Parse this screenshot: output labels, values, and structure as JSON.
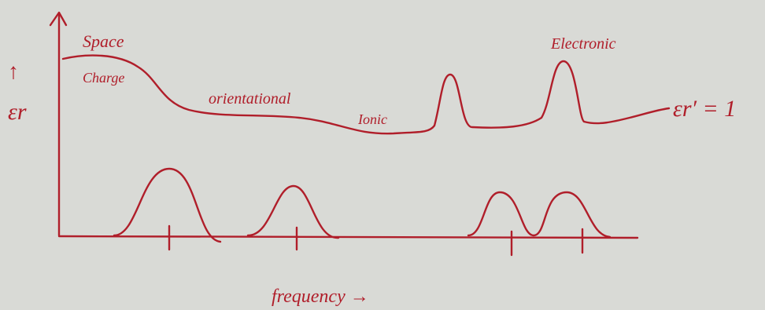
{
  "labels": {
    "y_arrow": "↑",
    "y_axis": "εr",
    "space": "Space",
    "charge": "Charge",
    "orientational": "orientational",
    "ionic": "Ionic",
    "electronic": "Electronic",
    "limit": "εr′ = 1",
    "x_axis": "frequency →"
  }
}
